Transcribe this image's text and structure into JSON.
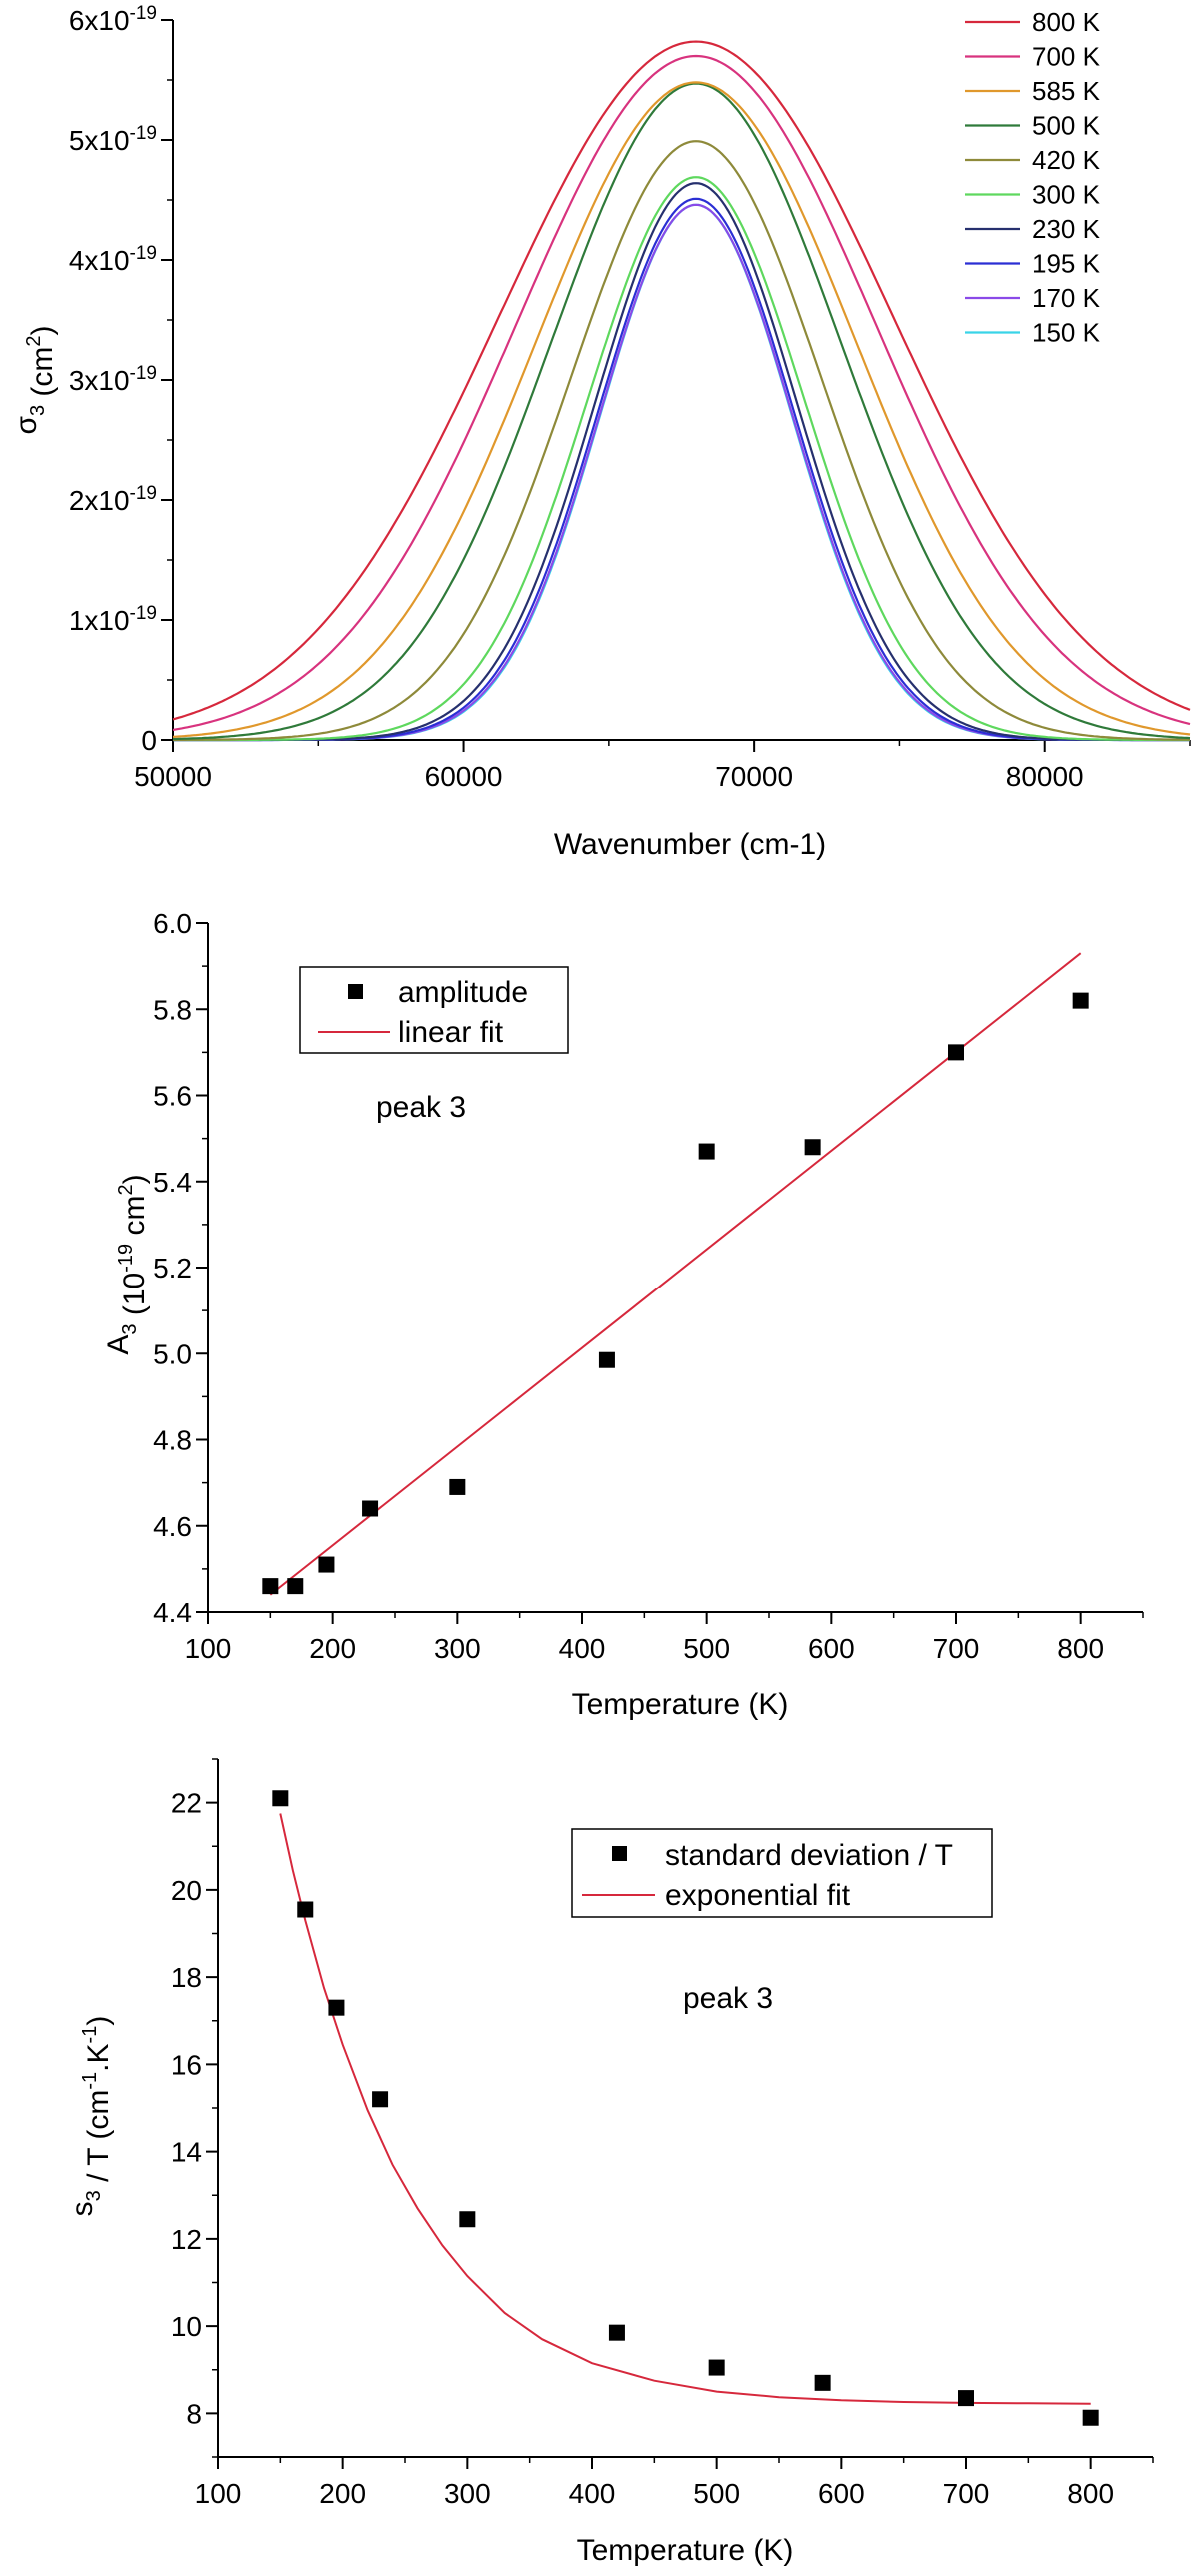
{
  "chart_data": [
    {
      "type": "line",
      "xlabel": "Wavenumber (cm-1)",
      "ylabel": "σ3 (cm2)",
      "xlim": [
        50000,
        85000
      ],
      "ylim": [
        0,
        6e-19
      ],
      "x_ticks": [
        "50000",
        "60000",
        "70000",
        "80000"
      ],
      "y_ticks": [
        "0",
        "1x10-19",
        "2x10-19",
        "3x10-19",
        "4x10-19",
        "5x10-19",
        "6x10-19"
      ],
      "legend_position": "top-right",
      "grid": false,
      "peak_center": 68000,
      "series": [
        {
          "name": "800 K",
          "color": "#d6283c",
          "amplitude": 5.82e-19,
          "sigma": 6780
        },
        {
          "name": "700 K",
          "color": "#d8337e",
          "amplitude": 5.7e-19,
          "sigma": 6200
        },
        {
          "name": "585 K",
          "color": "#e0982c",
          "amplitude": 5.48e-19,
          "sigma": 5500
        },
        {
          "name": "500 K",
          "color": "#2f7a3a",
          "amplitude": 5.47e-19,
          "sigma": 4980
        },
        {
          "name": "420 K",
          "color": "#8e8a3a",
          "amplitude": 4.99e-19,
          "sigma": 4300
        },
        {
          "name": "300 K",
          "color": "#5ed85e",
          "amplitude": 4.69e-19,
          "sigma": 3720
        },
        {
          "name": "230 K",
          "color": "#26306e",
          "amplitude": 4.64e-19,
          "sigma": 3470
        },
        {
          "name": "195 K",
          "color": "#2b2fd4",
          "amplitude": 4.51e-19,
          "sigma": 3370
        },
        {
          "name": "170 K",
          "color": "#8a4ae8",
          "amplitude": 4.46e-19,
          "sigma": 3320
        },
        {
          "name": "150 K",
          "color": "#39d4e8",
          "amplitude": 4.46e-19,
          "sigma": 3300
        }
      ]
    },
    {
      "type": "scatter",
      "xlabel": "Temperature (K)",
      "ylabel": "A3 (10-19 cm2)",
      "xlim": [
        100,
        850
      ],
      "ylim": [
        4.4,
        6.0
      ],
      "x_ticks": [
        "100",
        "200",
        "300",
        "400",
        "500",
        "600",
        "700",
        "800"
      ],
      "y_ticks": [
        "4.4",
        "4.6",
        "4.8",
        "5.0",
        "5.2",
        "5.4",
        "5.6",
        "5.8",
        "6.0"
      ],
      "annotation": "peak 3",
      "legend_position": "top-left",
      "grid": false,
      "series": [
        {
          "name": "amplitude",
          "marker": "square",
          "color": "#000000",
          "x": [
            150,
            170,
            195,
            230,
            300,
            420,
            500,
            585,
            700,
            800
          ],
          "y": [
            4.46,
            4.46,
            4.51,
            4.64,
            4.69,
            4.985,
            5.47,
            5.48,
            5.7,
            5.82
          ]
        },
        {
          "name": "linear fit",
          "type": "line",
          "color": "#d6283c",
          "x": [
            150,
            800
          ],
          "y": [
            4.44,
            5.93
          ]
        }
      ]
    },
    {
      "type": "scatter",
      "xlabel": "Temperature (K)",
      "ylabel": "s3 / T (cm-1.K-1)",
      "xlim": [
        100,
        850
      ],
      "ylim": [
        7,
        23
      ],
      "x_ticks": [
        "100",
        "200",
        "300",
        "400",
        "500",
        "600",
        "700",
        "800"
      ],
      "y_ticks": [
        "8",
        "10",
        "12",
        "14",
        "16",
        "18",
        "20",
        "22"
      ],
      "annotation": "peak 3",
      "legend_position": "top-right",
      "grid": false,
      "series": [
        {
          "name": "standard deviation / T",
          "marker": "square",
          "color": "#000000",
          "x": [
            150,
            170,
            195,
            230,
            300,
            420,
            500,
            585,
            700,
            800
          ],
          "y": [
            22.1,
            19.55,
            17.3,
            15.2,
            12.45,
            9.85,
            9.05,
            8.7,
            8.35,
            7.9
          ]
        },
        {
          "name": "exponential fit",
          "type": "line",
          "color": "#d6283c",
          "x": [
            150,
            160,
            170,
            185,
            200,
            220,
            240,
            260,
            280,
            300,
            330,
            360,
            400,
            450,
            500,
            550,
            600,
            650,
            700,
            750,
            800
          ],
          "y": [
            21.75,
            20.45,
            19.3,
            17.75,
            16.45,
            14.95,
            13.7,
            12.7,
            11.85,
            11.15,
            10.3,
            9.7,
            9.15,
            8.75,
            8.5,
            8.37,
            8.3,
            8.26,
            8.24,
            8.23,
            8.22
          ]
        }
      ]
    }
  ]
}
